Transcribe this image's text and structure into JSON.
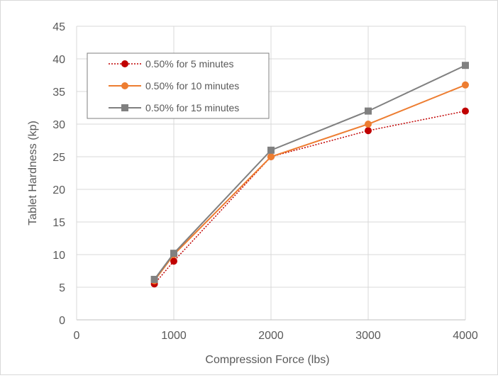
{
  "chart_data": {
    "type": "line",
    "title": "",
    "xlabel": "Compression Force (lbs)",
    "ylabel": "Tablet Hardness (kp)",
    "xlim": [
      0,
      4000
    ],
    "ylim": [
      0,
      45
    ],
    "x_ticks": [
      0,
      1000,
      2000,
      3000,
      4000
    ],
    "x_tick_labels": [
      "0",
      "1000",
      "2000",
      "3000",
      "4000"
    ],
    "y_ticks": [
      0,
      5,
      10,
      15,
      20,
      25,
      30,
      35,
      40,
      45
    ],
    "y_tick_labels": [
      "0",
      "5",
      "10",
      "15",
      "20",
      "25",
      "30",
      "35",
      "40",
      "45"
    ],
    "grid": true,
    "legend_position": "top-left",
    "series": [
      {
        "name": "0.50% for 5 minutes",
        "color": "#c00000",
        "line_style": "dotted",
        "marker": "circle",
        "x": [
          800,
          1000,
          2000,
          3000,
          4000
        ],
        "y": [
          5.5,
          9,
          25,
          29,
          32
        ]
      },
      {
        "name": "0.50% for 10 minutes",
        "color": "#ed7d31",
        "line_style": "solid",
        "marker": "circle",
        "x": [
          800,
          1000,
          2000,
          3000,
          4000
        ],
        "y": [
          6,
          10,
          25,
          30,
          36
        ]
      },
      {
        "name": "0.50% for 15 minutes",
        "color": "#808080",
        "line_style": "solid",
        "marker": "square",
        "x": [
          800,
          1000,
          2000,
          3000,
          4000
        ],
        "y": [
          6.2,
          10.2,
          26,
          32,
          39
        ]
      }
    ]
  }
}
